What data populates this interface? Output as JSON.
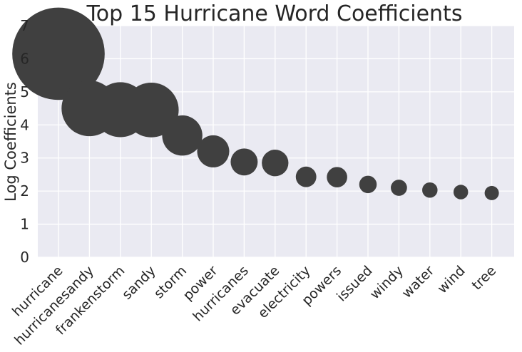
{
  "chart_data": {
    "type": "scatter",
    "title": "Top 15 Hurricane Word Coefficients",
    "xlabel": "",
    "ylabel": "Log Coefficients",
    "ylim": [
      0,
      7
    ],
    "yticks": [
      "0",
      "1",
      "2",
      "3",
      "4",
      "5",
      "6",
      "7"
    ],
    "grid": true,
    "legend": "none",
    "categories": [
      "hurricane",
      "hurricanesandy",
      "frankenstorm",
      "sandy",
      "storm",
      "power",
      "hurricanes",
      "evacuate",
      "electricity",
      "powers",
      "issued",
      "windy",
      "water",
      "wind",
      "tree"
    ],
    "values": [
      6.15,
      4.5,
      4.46,
      4.45,
      3.68,
      3.2,
      2.88,
      2.85,
      2.43,
      2.42,
      2.2,
      2.1,
      2.03,
      1.97,
      1.94
    ],
    "marker_size_encodes": "value",
    "colors": {
      "marker": "#404040",
      "plot_bg": "#EAEAF2",
      "grid": "#FFFFFF",
      "text": "#262626"
    }
  }
}
